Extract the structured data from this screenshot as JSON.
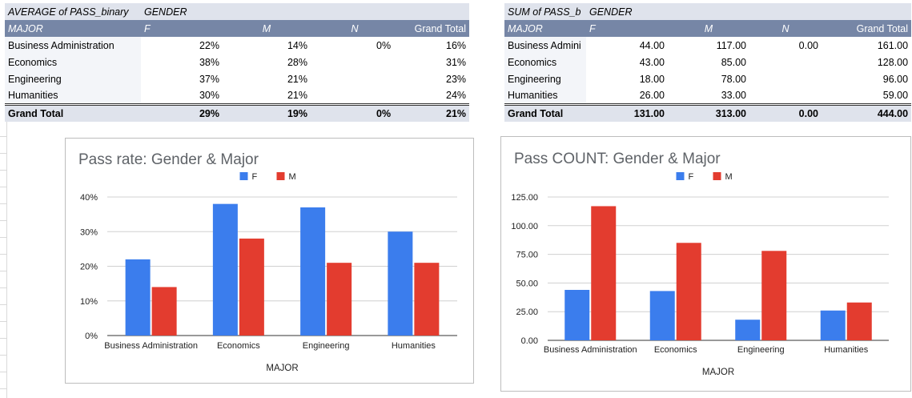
{
  "pivot_avg": {
    "corner_label": "AVERAGE of PASS_binary",
    "column_group_label": "GENDER",
    "row_header": "MAJOR",
    "columns": [
      "F",
      "M",
      "N",
      "Grand Total"
    ],
    "rows": [
      {
        "label": "Business Administration",
        "values": [
          "22%",
          "14%",
          "0%",
          "16%"
        ]
      },
      {
        "label": "Economics",
        "values": [
          "38%",
          "28%",
          "",
          "31%"
        ]
      },
      {
        "label": "Engineering",
        "values": [
          "37%",
          "21%",
          "",
          "23%"
        ]
      },
      {
        "label": "Humanities",
        "values": [
          "30%",
          "21%",
          "",
          "24%"
        ]
      }
    ],
    "total": {
      "label": "Grand Total",
      "values": [
        "29%",
        "19%",
        "0%",
        "21%"
      ]
    }
  },
  "pivot_sum": {
    "corner_label": "SUM of PASS_b",
    "column_group_label": "GENDER",
    "row_header": "MAJOR",
    "columns": [
      "F",
      "M",
      "N",
      "Grand Total"
    ],
    "rows": [
      {
        "label": "Business Admini",
        "values": [
          "44.00",
          "117.00",
          "0.00",
          "161.00"
        ]
      },
      {
        "label": "Economics",
        "values": [
          "43.00",
          "85.00",
          "",
          "128.00"
        ]
      },
      {
        "label": "Engineering",
        "values": [
          "18.00",
          "78.00",
          "",
          "96.00"
        ]
      },
      {
        "label": "Humanities",
        "values": [
          "26.00",
          "33.00",
          "",
          "59.00"
        ]
      }
    ],
    "total": {
      "label": "Grand Total",
      "values": [
        "131.00",
        "313.00",
        "0.00",
        "444.00"
      ]
    }
  },
  "colors": {
    "F": "#3b7ded",
    "M": "#e33c2f",
    "header_bg": "#7686a6",
    "title_bg": "#dfe3ec"
  },
  "chart_data": [
    {
      "type": "bar",
      "title": "Pass rate: Gender & Major",
      "xlabel": "MAJOR",
      "ylabel": "",
      "categories": [
        "Business Administration",
        "Economics",
        "Engineering",
        "Humanities"
      ],
      "series": [
        {
          "name": "F",
          "values": [
            0.22,
            0.38,
            0.37,
            0.3
          ],
          "color": "#3b7ded"
        },
        {
          "name": "M",
          "values": [
            0.14,
            0.28,
            0.21,
            0.21
          ],
          "color": "#e33c2f"
        }
      ],
      "ylim": [
        0,
        0.4
      ],
      "yticks": [
        0,
        0.1,
        0.2,
        0.3,
        0.4
      ],
      "ytick_labels": [
        "0%",
        "10%",
        "20%",
        "30%",
        "40%"
      ],
      "legend": "top-center",
      "grid": true
    },
    {
      "type": "bar",
      "title": "Pass COUNT: Gender & Major",
      "xlabel": "MAJOR",
      "ylabel": "",
      "categories": [
        "Business Administration",
        "Economics",
        "Engineering",
        "Humanities"
      ],
      "series": [
        {
          "name": "F",
          "values": [
            44,
            43,
            18,
            26
          ],
          "color": "#3b7ded"
        },
        {
          "name": "M",
          "values": [
            117,
            85,
            78,
            33
          ],
          "color": "#e33c2f"
        }
      ],
      "ylim": [
        0,
        125
      ],
      "yticks": [
        0,
        25,
        50,
        75,
        100,
        125
      ],
      "ytick_labels": [
        "0.00",
        "25.00",
        "50.00",
        "75.00",
        "100.00",
        "125.00"
      ],
      "legend": "top-center",
      "grid": true
    }
  ]
}
